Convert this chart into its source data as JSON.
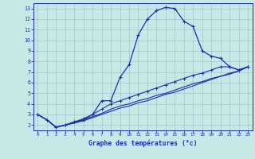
{
  "title": "Graphe des températures (°c)",
  "bg_color": "#c8e8e8",
  "line_color": "#1a2eb0",
  "grid_color": "#a0c8c8",
  "xlim": [
    -0.5,
    23.5
  ],
  "ylim": [
    1.5,
    13.5
  ],
  "x_ticks": [
    0,
    1,
    2,
    3,
    4,
    5,
    6,
    7,
    8,
    9,
    10,
    11,
    12,
    13,
    14,
    15,
    16,
    17,
    18,
    19,
    20,
    21,
    22,
    23
  ],
  "y_ticks": [
    2,
    3,
    4,
    5,
    6,
    7,
    8,
    9,
    10,
    11,
    12,
    13
  ],
  "main_temp": [
    3.0,
    2.5,
    1.8,
    2.0,
    2.3,
    2.5,
    3.0,
    4.3,
    4.3,
    6.5,
    7.7,
    10.5,
    12.0,
    12.8,
    13.1,
    13.0,
    11.8,
    11.3,
    9.0,
    8.5,
    8.3,
    7.5,
    7.2,
    7.5
  ],
  "line2": [
    3.0,
    2.5,
    1.8,
    2.0,
    2.3,
    2.6,
    3.0,
    3.5,
    4.0,
    4.3,
    4.6,
    4.9,
    5.2,
    5.5,
    5.8,
    6.1,
    6.4,
    6.7,
    6.9,
    7.2,
    7.5,
    7.5,
    7.2,
    7.5
  ],
  "line3": [
    3.0,
    2.5,
    1.8,
    2.0,
    2.2,
    2.5,
    2.8,
    3.1,
    3.5,
    3.8,
    4.0,
    4.3,
    4.5,
    4.8,
    5.0,
    5.3,
    5.6,
    5.9,
    6.1,
    6.4,
    6.6,
    6.9,
    7.1,
    7.5
  ],
  "line4": [
    3.0,
    2.5,
    1.8,
    2.0,
    2.2,
    2.4,
    2.7,
    3.0,
    3.3,
    3.6,
    3.8,
    4.1,
    4.3,
    4.6,
    4.9,
    5.1,
    5.4,
    5.7,
    6.0,
    6.3,
    6.6,
    6.8,
    7.1,
    7.5
  ]
}
